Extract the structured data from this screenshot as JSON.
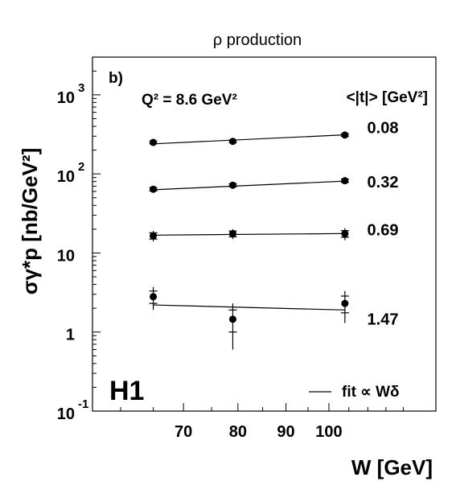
{
  "chart_data": {
    "type": "scatter",
    "title": "ρ production",
    "panel_label": "b)",
    "kinematics_label": "Q² = 8.6 GeV²",
    "ylabel": "σγ*p [nb/GeV²]",
    "xlabel": "W [GeV]",
    "series_header": "<|t|> [GeV²]",
    "experiment_label": "H1",
    "legend": {
      "placement": "bottom-right",
      "line_label": "fit ∝ Wδ"
    },
    "y_scale": "log",
    "x_scale": "log",
    "xlim": [
      56,
      130
    ],
    "ylim": [
      0.1,
      3000
    ],
    "x_ticks": [
      70,
      80,
      90,
      100
    ],
    "y_ticks": [
      {
        "value": 0.1,
        "base": "10",
        "exp": "-1"
      },
      {
        "value": 1,
        "base": "1",
        "exp": ""
      },
      {
        "value": 10,
        "base": "10",
        "exp": ""
      },
      {
        "value": 100,
        "base": "10",
        "exp": "2"
      },
      {
        "value": 1000,
        "base": "10",
        "exp": "3"
      }
    ],
    "series": [
      {
        "name": "0.08",
        "x": [
          65,
          79,
          104
        ],
        "y": [
          250,
          258,
          310
        ],
        "err_stat": [
          10,
          10,
          12
        ],
        "err_tot": [
          18,
          18,
          22
        ],
        "fit": {
          "x": [
            65,
            104
          ],
          "y": [
            240,
            312
          ]
        }
      },
      {
        "name": "0.32",
        "x": [
          65,
          79,
          104
        ],
        "y": [
          64,
          72,
          82
        ],
        "err_stat": [
          3,
          3,
          4
        ],
        "err_tot": [
          5,
          5,
          6
        ],
        "fit": {
          "x": [
            65,
            104
          ],
          "y": [
            63,
            81
          ]
        }
      },
      {
        "name": "0.69",
        "x": [
          65,
          79,
          104
        ],
        "y": [
          16.5,
          17.5,
          17.5
        ],
        "err_stat": [
          1.5,
          1.5,
          1.7
        ],
        "err_tot": [
          2.5,
          2.5,
          3.0
        ],
        "fit": {
          "x": [
            65,
            104
          ],
          "y": [
            16.8,
            17.6
          ]
        }
      },
      {
        "name": "1.47",
        "x": [
          65,
          79,
          104
        ],
        "y": [
          2.8,
          1.45,
          2.3
        ],
        "err_stat": [
          0.5,
          0.45,
          0.55
        ],
        "err_tot": [
          0.9,
          0.85,
          1.0
        ],
        "fit": {
          "x": [
            65,
            104
          ],
          "y": [
            2.2,
            1.9
          ]
        }
      }
    ]
  }
}
